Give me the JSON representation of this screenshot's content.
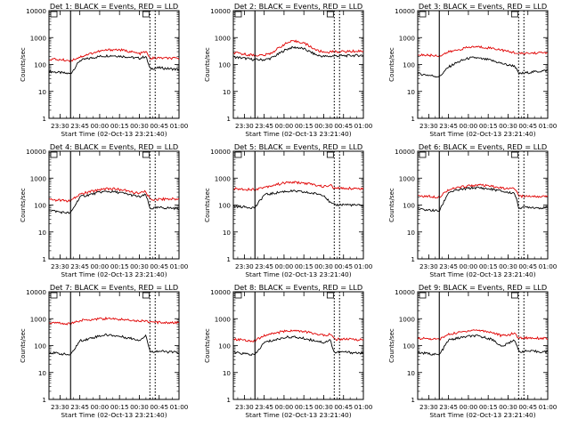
{
  "chart_data": [
    {
      "type": "line",
      "title": "Det 1: BLACK = Events, RED = LLD",
      "xlabel": "Start Time (02-Oct-13 23:21:40)",
      "ylabel": "Counts/sec",
      "x_ticks": [
        "23:30",
        "23:45",
        "00:00",
        "00:15",
        "00:30",
        "00:45",
        "01:00"
      ],
      "y_ticks": [
        "1",
        "10",
        "100",
        "1000",
        "10000"
      ],
      "y_scale": "log",
      "ylim": [
        1,
        10000
      ],
      "xlim": [
        "23:21:40",
        "01:00"
      ],
      "markers": [
        "23:38",
        "00:38",
        "00:42"
      ],
      "x": [
        "23:22",
        "23:30",
        "23:38",
        "23:45",
        "23:50",
        "23:55",
        "00:00",
        "00:05",
        "00:10",
        "00:15",
        "00:20",
        "00:25",
        "00:30",
        "00:35",
        "00:38",
        "00:45",
        "00:52",
        "01:00"
      ],
      "series": [
        {
          "name": "BLACK = Events",
          "color": "#000000",
          "values": [
            55,
            50,
            45,
            140,
            160,
            180,
            200,
            210,
            215,
            205,
            195,
            180,
            170,
            200,
            70,
            75,
            70,
            65
          ]
        },
        {
          "name": "RED = LLD",
          "color": "#e00000",
          "values": [
            160,
            150,
            140,
            190,
            230,
            270,
            310,
            340,
            360,
            350,
            320,
            290,
            250,
            300,
            170,
            175,
            170,
            165
          ]
        }
      ]
    },
    {
      "type": "line",
      "title": "Det 2: BLACK = Events, RED = LLD",
      "xlabel": "Start Time (02-Oct-13 23:21:40)",
      "ylabel": "Counts/sec",
      "x_ticks": [
        "23:30",
        "23:45",
        "00:00",
        "00:15",
        "00:30",
        "00:45",
        "01:00"
      ],
      "y_ticks": [
        "1",
        "10",
        "100",
        "1000",
        "10000"
      ],
      "y_scale": "log",
      "ylim": [
        1,
        10000
      ],
      "xlim": [
        "23:21:40",
        "01:00"
      ],
      "markers": [
        "23:38",
        "00:38",
        "00:42"
      ],
      "x": [
        "23:22",
        "23:30",
        "23:38",
        "23:45",
        "23:50",
        "23:55",
        "00:00",
        "00:05",
        "00:10",
        "00:15",
        "00:20",
        "00:25",
        "00:30",
        "00:35",
        "00:38",
        "00:45",
        "00:52",
        "01:00"
      ],
      "series": [
        {
          "name": "BLACK = Events",
          "color": "#000000",
          "values": [
            190,
            170,
            150,
            150,
            170,
            230,
            330,
            420,
            430,
            380,
            290,
            220,
            200,
            200,
            210,
            210,
            215,
            220
          ]
        },
        {
          "name": "RED = LLD",
          "color": "#e00000",
          "values": [
            270,
            240,
            220,
            220,
            260,
            380,
            560,
            700,
            720,
            630,
            460,
            330,
            290,
            290,
            300,
            300,
            310,
            320
          ]
        }
      ]
    },
    {
      "type": "line",
      "title": "Det 3: BLACK = Events, RED = LLD",
      "xlabel": "Start Time (02-Oct-13 23:21:40)",
      "ylabel": "Counts/sec",
      "x_ticks": [
        "23:30",
        "23:45",
        "00:00",
        "00:15",
        "00:30",
        "00:45",
        "01:00"
      ],
      "y_ticks": [
        "1",
        "10",
        "100",
        "1000",
        "10000"
      ],
      "y_scale": "log",
      "ylim": [
        1,
        10000
      ],
      "xlim": [
        "23:21:40",
        "01:00"
      ],
      "markers": [
        "23:38",
        "00:38",
        "00:42"
      ],
      "x": [
        "23:22",
        "23:30",
        "23:38",
        "23:45",
        "23:50",
        "23:55",
        "00:00",
        "00:05",
        "00:10",
        "00:15",
        "00:20",
        "00:25",
        "00:30",
        "00:35",
        "00:38",
        "00:45",
        "00:52",
        "01:00"
      ],
      "series": [
        {
          "name": "BLACK = Events",
          "color": "#000000",
          "values": [
            45,
            40,
            35,
            80,
            110,
            140,
            170,
            180,
            160,
            150,
            130,
            110,
            95,
            90,
            45,
            50,
            55,
            60
          ]
        },
        {
          "name": "RED = LLD",
          "color": "#e00000",
          "values": [
            230,
            220,
            210,
            290,
            330,
            380,
            430,
            460,
            440,
            420,
            390,
            350,
            300,
            280,
            250,
            260,
            270,
            280
          ]
        }
      ]
    },
    {
      "type": "line",
      "title": "Det 4: BLACK = Events, RED = LLD",
      "xlabel": "Start Time (02-Oct-13 23:21:40)",
      "ylabel": "Counts/sec",
      "x_ticks": [
        "23:30",
        "23:45",
        "00:00",
        "00:15",
        "00:30",
        "00:45",
        "01:00"
      ],
      "y_ticks": [
        "1",
        "10",
        "100",
        "1000",
        "10000"
      ],
      "y_scale": "log",
      "ylim": [
        1,
        10000
      ],
      "xlim": [
        "23:21:40",
        "01:00"
      ],
      "markers": [
        "23:38",
        "00:38",
        "00:42"
      ],
      "x": [
        "23:22",
        "23:30",
        "23:38",
        "23:45",
        "23:50",
        "23:55",
        "00:00",
        "00:05",
        "00:10",
        "00:15",
        "00:20",
        "00:25",
        "00:30",
        "00:35",
        "00:38",
        "00:45",
        "00:52",
        "01:00"
      ],
      "series": [
        {
          "name": "BLACK = Events",
          "color": "#000000",
          "values": [
            65,
            55,
            50,
            200,
            230,
            260,
            300,
            320,
            310,
            290,
            260,
            230,
            200,
            240,
            75,
            80,
            78,
            75
          ]
        },
        {
          "name": "RED = LLD",
          "color": "#e00000",
          "values": [
            160,
            150,
            140,
            250,
            290,
            330,
            380,
            410,
            400,
            380,
            340,
            300,
            270,
            320,
            160,
            165,
            170,
            165
          ]
        }
      ]
    },
    {
      "type": "line",
      "title": "Det 5: BLACK = Events, RED = LLD",
      "xlabel": "Start Time (02-Oct-13 23:21:40)",
      "ylabel": "Counts/sec",
      "x_ticks": [
        "23:30",
        "23:45",
        "00:00",
        "00:15",
        "00:30",
        "00:45",
        "01:00"
      ],
      "y_ticks": [
        "1",
        "10",
        "100",
        "1000",
        "10000"
      ],
      "y_scale": "log",
      "ylim": [
        1,
        10000
      ],
      "xlim": [
        "23:21:40",
        "01:00"
      ],
      "markers": [
        "23:38",
        "00:38",
        "00:42"
      ],
      "x": [
        "23:22",
        "23:30",
        "23:38",
        "23:45",
        "23:50",
        "23:55",
        "00:00",
        "00:05",
        "00:10",
        "00:15",
        "00:20",
        "00:25",
        "00:30",
        "00:35",
        "00:38",
        "00:45",
        "00:52",
        "01:00"
      ],
      "series": [
        {
          "name": "BLACK = Events",
          "color": "#000000",
          "values": [
            90,
            85,
            80,
            240,
            260,
            290,
            320,
            330,
            320,
            300,
            280,
            260,
            240,
            120,
            100,
            105,
            100,
            95
          ]
        },
        {
          "name": "RED = LLD",
          "color": "#e00000",
          "values": [
            400,
            390,
            380,
            460,
            520,
            590,
            660,
            700,
            690,
            650,
            600,
            540,
            480,
            560,
            410,
            420,
            415,
            410
          ]
        }
      ]
    },
    {
      "type": "line",
      "title": "Det 6: BLACK = Events, RED = LLD",
      "xlabel": "Start Time (02-Oct-13 23:21:40)",
      "ylabel": "Counts/sec",
      "x_ticks": [
        "23:30",
        "23:45",
        "00:00",
        "00:15",
        "00:30",
        "00:45",
        "01:00"
      ],
      "y_ticks": [
        "1",
        "10",
        "100",
        "1000",
        "10000"
      ],
      "y_scale": "log",
      "ylim": [
        1,
        10000
      ],
      "xlim": [
        "23:21:40",
        "01:00"
      ],
      "markers": [
        "23:38",
        "00:38",
        "00:42"
      ],
      "x": [
        "23:22",
        "23:30",
        "23:38",
        "23:45",
        "23:50",
        "23:55",
        "00:00",
        "00:05",
        "00:10",
        "00:15",
        "00:20",
        "00:25",
        "00:30",
        "00:35",
        "00:38",
        "00:45",
        "00:52",
        "01:00"
      ],
      "series": [
        {
          "name": "BLACK = Events",
          "color": "#000000",
          "values": [
            70,
            65,
            60,
            300,
            340,
            380,
            420,
            440,
            430,
            400,
            370,
            330,
            290,
            280,
            80,
            85,
            80,
            78
          ]
        },
        {
          "name": "RED = LLD",
          "color": "#e00000",
          "values": [
            220,
            210,
            200,
            380,
            420,
            470,
            520,
            550,
            540,
            510,
            470,
            430,
            390,
            430,
            210,
            215,
            210,
            205
          ]
        }
      ]
    },
    {
      "type": "line",
      "title": "Det 7: BLACK = Events, RED = LLD",
      "xlabel": "Start Time (02-Oct-13 23:21:40)",
      "ylabel": "Counts/sec",
      "x_ticks": [
        "23:30",
        "23:45",
        "00:00",
        "00:15",
        "00:30",
        "00:45",
        "01:00"
      ],
      "y_ticks": [
        "1",
        "10",
        "100",
        "1000",
        "10000"
      ],
      "y_scale": "log",
      "ylim": [
        1,
        10000
      ],
      "xlim": [
        "23:21:40",
        "01:00"
      ],
      "markers": [
        "23:38",
        "00:38",
        "00:42"
      ],
      "x": [
        "23:22",
        "23:30",
        "23:38",
        "23:45",
        "23:50",
        "23:55",
        "00:00",
        "00:05",
        "00:10",
        "00:15",
        "00:20",
        "00:25",
        "00:30",
        "00:35",
        "00:38",
        "00:45",
        "00:52",
        "01:00"
      ],
      "series": [
        {
          "name": "BLACK = Events",
          "color": "#000000",
          "values": [
            55,
            50,
            45,
            150,
            170,
            200,
            230,
            250,
            240,
            220,
            200,
            180,
            160,
            240,
            60,
            62,
            58,
            55
          ]
        },
        {
          "name": "RED = LLD",
          "color": "#e00000",
          "values": [
            700,
            680,
            650,
            850,
            900,
            950,
            1000,
            1000,
            980,
            950,
            920,
            880,
            830,
            850,
            720,
            730,
            720,
            700
          ]
        }
      ]
    },
    {
      "type": "line",
      "title": "Det 8: BLACK = Events, RED = LLD",
      "xlabel": "Start Time (02-Oct-13 23:21:40)",
      "ylabel": "Counts/sec",
      "x_ticks": [
        "23:30",
        "23:45",
        "00:00",
        "00:15",
        "00:30",
        "00:45",
        "01:00"
      ],
      "y_ticks": [
        "1",
        "10",
        "100",
        "1000",
        "10000"
      ],
      "y_scale": "log",
      "ylim": [
        1,
        10000
      ],
      "xlim": [
        "23:21:40",
        "01:00"
      ],
      "markers": [
        "23:38",
        "00:38",
        "00:42"
      ],
      "x": [
        "23:22",
        "23:30",
        "23:38",
        "23:45",
        "23:50",
        "23:55",
        "00:00",
        "00:05",
        "00:10",
        "00:15",
        "00:20",
        "00:25",
        "00:30",
        "00:35",
        "00:38",
        "00:45",
        "00:52",
        "01:00"
      ],
      "series": [
        {
          "name": "BLACK = Events",
          "color": "#000000",
          "values": [
            55,
            50,
            45,
            130,
            150,
            170,
            200,
            210,
            200,
            185,
            165,
            150,
            130,
            160,
            55,
            58,
            55,
            52
          ]
        },
        {
          "name": "RED = LLD",
          "color": "#e00000",
          "values": [
            170,
            160,
            150,
            240,
            270,
            300,
            340,
            360,
            350,
            330,
            300,
            270,
            240,
            270,
            170,
            175,
            170,
            165
          ]
        }
      ]
    },
    {
      "type": "line",
      "title": "Det 9: BLACK = Events, RED = LLD",
      "xlabel": "Start Time (02-Oct-13 23:21:40)",
      "ylabel": "Counts/sec",
      "x_ticks": [
        "23:30",
        "23:45",
        "00:00",
        "00:15",
        "00:30",
        "00:45",
        "01:00"
      ],
      "y_ticks": [
        "1",
        "10",
        "100",
        "1000",
        "10000"
      ],
      "y_scale": "log",
      "ylim": [
        1,
        10000
      ],
      "xlim": [
        "23:21:40",
        "01:00"
      ],
      "markers": [
        "23:38",
        "00:38",
        "00:42"
      ],
      "x": [
        "23:22",
        "23:30",
        "23:38",
        "23:45",
        "23:50",
        "23:55",
        "00:00",
        "00:05",
        "00:10",
        "00:15",
        "00:20",
        "00:25",
        "00:30",
        "00:35",
        "00:38",
        "00:45",
        "00:52",
        "01:00"
      ],
      "series": [
        {
          "name": "BLACK = Events",
          "color": "#000000",
          "values": [
            55,
            50,
            45,
            160,
            180,
            200,
            220,
            230,
            210,
            190,
            150,
            90,
            120,
            170,
            60,
            62,
            60,
            58
          ]
        },
        {
          "name": "RED = LLD",
          "color": "#e00000",
          "values": [
            190,
            180,
            170,
            260,
            290,
            320,
            360,
            380,
            360,
            330,
            290,
            230,
            250,
            290,
            190,
            195,
            190,
            185
          ]
        }
      ]
    }
  ]
}
